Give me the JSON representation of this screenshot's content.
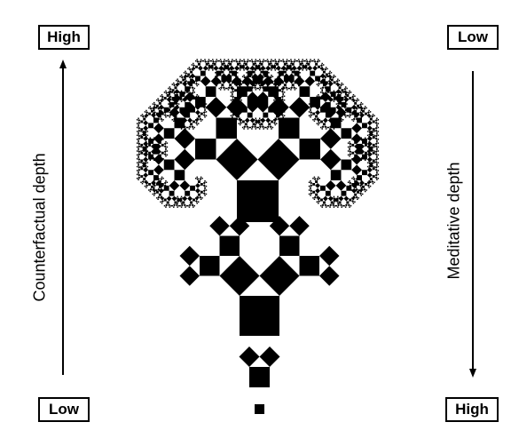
{
  "left_axis": {
    "label": "Counterfactual depth",
    "top": "High",
    "bottom": "Low"
  },
  "right_axis": {
    "label": "Meditative depth",
    "top": "Low",
    "bottom": "High"
  },
  "fractal": {
    "depths": [
      0,
      1,
      3,
      10
    ],
    "color": "#000000"
  }
}
